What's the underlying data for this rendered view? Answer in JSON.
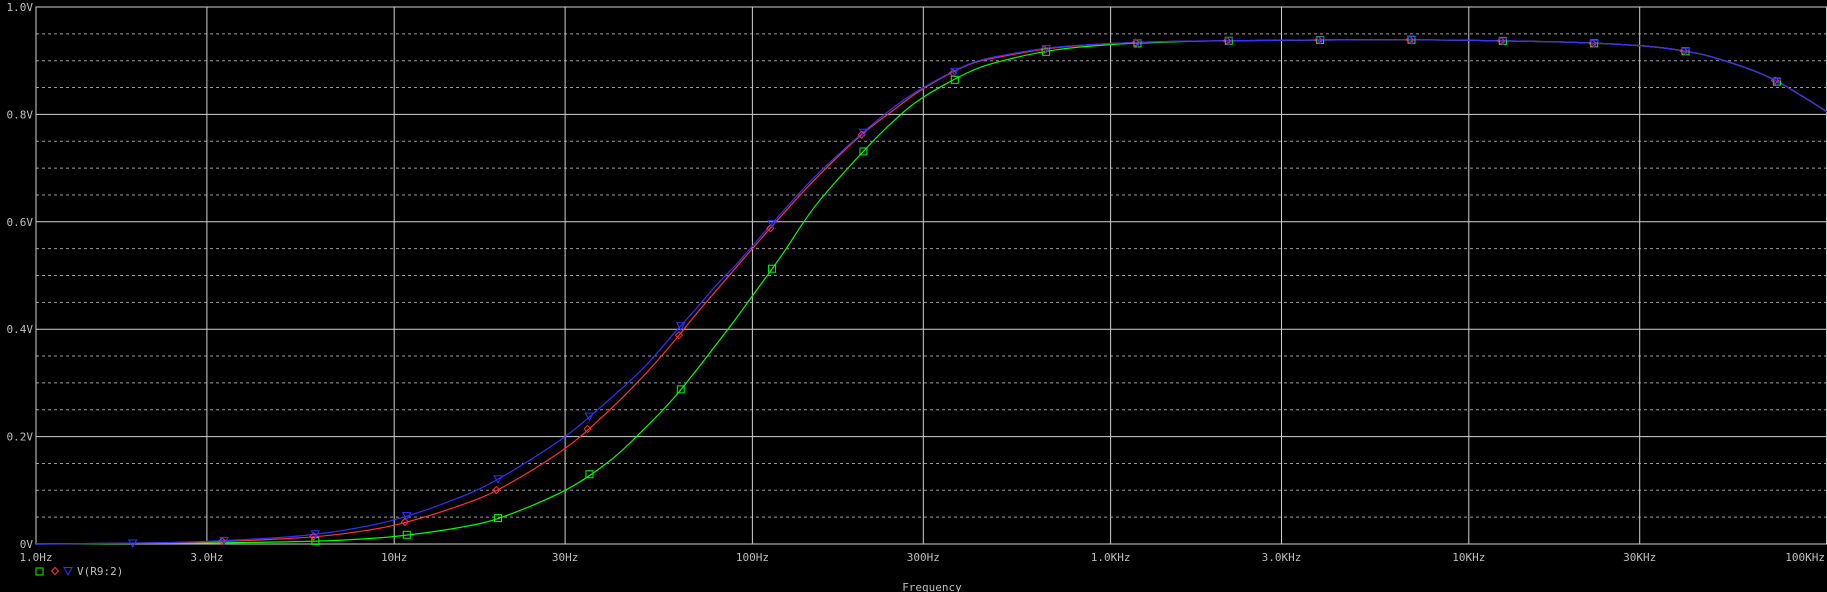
{
  "chart_data": {
    "type": "line",
    "title": "",
    "xlabel": "Frequency",
    "ylabel": "",
    "x_scale": "log",
    "xlim": [
      1,
      100000
    ],
    "ylim": [
      0,
      1.0
    ],
    "grid": true,
    "x_ticks": [
      {
        "value": 1,
        "label": "1.0Hz"
      },
      {
        "value": 3,
        "label": "3.0Hz"
      },
      {
        "value": 10,
        "label": "10Hz"
      },
      {
        "value": 30,
        "label": "30Hz"
      },
      {
        "value": 100,
        "label": "100Hz"
      },
      {
        "value": 300,
        "label": "300Hz"
      },
      {
        "value": 1000,
        "label": "1.0KHz"
      },
      {
        "value": 3000,
        "label": "3.0KHz"
      },
      {
        "value": 10000,
        "label": "10KHz"
      },
      {
        "value": 30000,
        "label": "30KHz"
      },
      {
        "value": 100000,
        "label": "100KHz"
      }
    ],
    "y_ticks": [
      {
        "value": 0,
        "label": "0V"
      },
      {
        "value": 0.2,
        "label": "0.2V"
      },
      {
        "value": 0.4,
        "label": "0.4V"
      },
      {
        "value": 0.6,
        "label": "0.6V"
      },
      {
        "value": 0.8,
        "label": "0.8V"
      },
      {
        "value": 1.0,
        "label": "1.0V"
      }
    ],
    "legend": {
      "placement": "bottom-left",
      "label": "V(R9:2)"
    },
    "series": [
      {
        "color": "#00ff00",
        "marker": "square",
        "x": [
          1,
          2,
          3,
          5,
          7,
          10,
          15,
          20,
          30,
          40,
          50,
          60,
          70,
          80,
          90,
          100,
          120,
          150,
          200,
          250,
          300,
          400,
          500,
          700,
          1000,
          1500,
          2000,
          3000,
          5000,
          7000,
          10000,
          15000,
          20000,
          30000,
          40000,
          50000,
          70000,
          100000
        ],
        "y": [
          0,
          0.001,
          0.002,
          0.004,
          0.007,
          0.014,
          0.03,
          0.05,
          0.1,
          0.155,
          0.215,
          0.27,
          0.325,
          0.375,
          0.42,
          0.462,
          0.535,
          0.63,
          0.725,
          0.79,
          0.832,
          0.878,
          0.9,
          0.92,
          0.93,
          0.935,
          0.937,
          0.938,
          0.939,
          0.939,
          0.938,
          0.936,
          0.934,
          0.928,
          0.918,
          0.903,
          0.867,
          0.805
        ]
      },
      {
        "color": "#ff3030",
        "marker": "diamond",
        "x": [
          1,
          2,
          3,
          5,
          7,
          10,
          15,
          20,
          30,
          40,
          50,
          60,
          70,
          80,
          90,
          100,
          120,
          150,
          200,
          250,
          300,
          400,
          500,
          700,
          1000,
          1500,
          2000,
          3000,
          5000,
          7000,
          10000,
          15000,
          20000,
          30000,
          40000,
          50000,
          70000,
          100000
        ],
        "y": [
          0,
          0.002,
          0.004,
          0.01,
          0.018,
          0.035,
          0.07,
          0.105,
          0.178,
          0.25,
          0.315,
          0.375,
          0.43,
          0.475,
          0.515,
          0.55,
          0.61,
          0.68,
          0.76,
          0.81,
          0.848,
          0.892,
          0.908,
          0.924,
          0.932,
          0.936,
          0.937,
          0.938,
          0.939,
          0.939,
          0.938,
          0.936,
          0.934,
          0.928,
          0.918,
          0.903,
          0.867,
          0.805
        ]
      },
      {
        "color": "#3030ff",
        "marker": "triangle",
        "x": [
          1,
          2,
          3,
          5,
          7,
          10,
          15,
          20,
          30,
          40,
          50,
          60,
          70,
          80,
          90,
          100,
          120,
          150,
          200,
          250,
          300,
          400,
          500,
          700,
          1000,
          1500,
          2000,
          3000,
          5000,
          7000,
          10000,
          15000,
          20000,
          30000,
          40000,
          50000,
          70000,
          100000
        ],
        "y": [
          0,
          0.002,
          0.005,
          0.013,
          0.024,
          0.045,
          0.085,
          0.125,
          0.2,
          0.27,
          0.33,
          0.39,
          0.44,
          0.485,
          0.52,
          0.555,
          0.615,
          0.685,
          0.762,
          0.815,
          0.85,
          0.893,
          0.91,
          0.925,
          0.932,
          0.936,
          0.937,
          0.938,
          0.939,
          0.939,
          0.938,
          0.936,
          0.934,
          0.928,
          0.918,
          0.903,
          0.867,
          0.805
        ]
      }
    ]
  }
}
